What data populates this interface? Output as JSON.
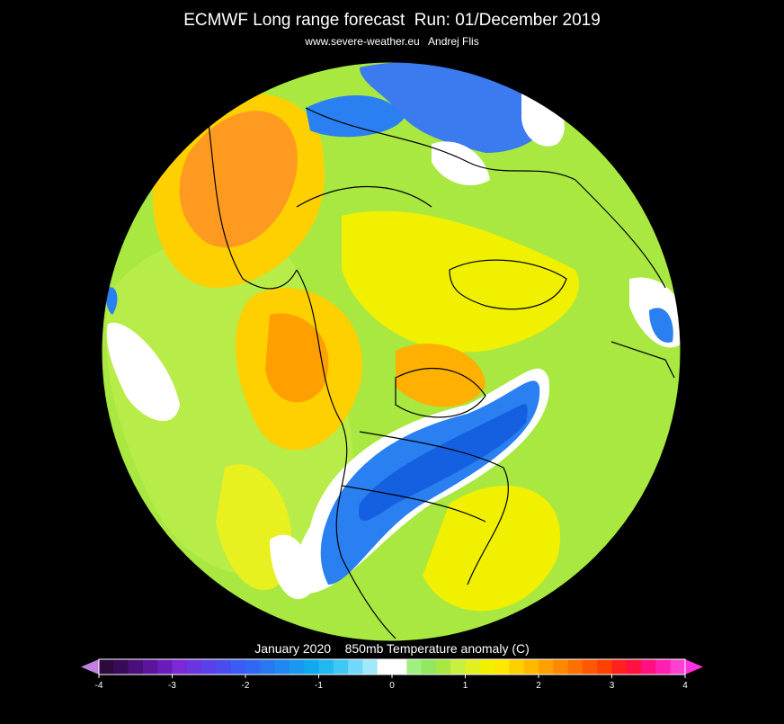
{
  "header": {
    "title": "ECMWF Long range forecast  Run: 01/December 2019",
    "subtitle": "www.severe-weather.eu   Andrej Flis"
  },
  "legend": {
    "title": "January 2020    850mb Temperature anomaly (C)",
    "range": [
      -4,
      4
    ],
    "ticks": [
      -4,
      -3,
      -2,
      -1,
      0,
      1,
      2,
      3,
      4
    ],
    "colors": [
      "#2d0a3d",
      "#3a0a5a",
      "#4a0f7a",
      "#5a159a",
      "#6a1cba",
      "#7a28d8",
      "#6a35e0",
      "#5a40e8",
      "#4a4cf0",
      "#3c5af5",
      "#3068f5",
      "#2878f0",
      "#2088f0",
      "#1898f0",
      "#10a8f0",
      "#20b8f0",
      "#40c8f5",
      "#70d8f8",
      "#a0e8fa",
      "#ffffff",
      "#ffffff",
      "#a0f080",
      "#90e860",
      "#a8e840",
      "#c8f040",
      "#e0f020",
      "#f0f000",
      "#ffe800",
      "#ffd000",
      "#ffb800",
      "#ffa000",
      "#ff8800",
      "#ff7000",
      "#ff5800",
      "#ff4000",
      "#ff2020",
      "#ff1040",
      "#ff1080",
      "#ff20b0",
      "#ff40d0"
    ],
    "under_color": "#c080e0",
    "over_color": "#ff30e0"
  }
}
